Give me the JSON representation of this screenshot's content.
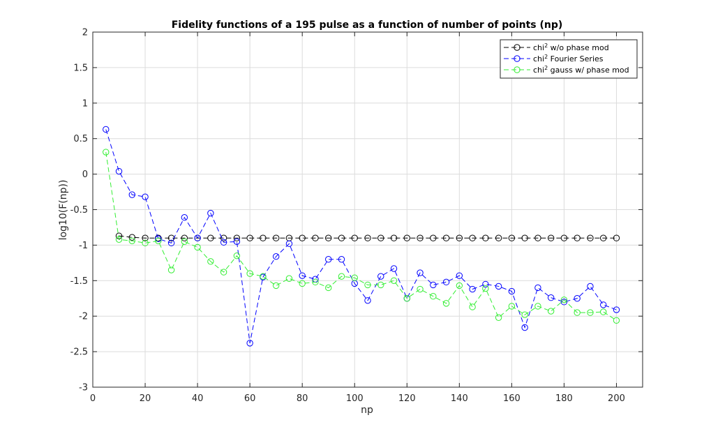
{
  "chart_data": {
    "type": "line",
    "title": "Fidelity functions of a 195 pulse as a function of number of points (np)",
    "xlabel": "np",
    "ylabel": "log10(F(np))",
    "xlim": [
      0,
      210
    ],
    "ylim": [
      -3,
      2
    ],
    "xticks": [
      0,
      20,
      40,
      60,
      80,
      100,
      120,
      140,
      160,
      180,
      200
    ],
    "yticks": [
      -3,
      -2.5,
      -2,
      -1.5,
      -1,
      -0.5,
      0,
      0.5,
      1,
      1.5,
      2
    ],
    "grid": true,
    "legend_position": "top-right",
    "x": [
      5,
      10,
      15,
      20,
      25,
      30,
      35,
      40,
      45,
      50,
      55,
      60,
      65,
      70,
      75,
      80,
      85,
      90,
      95,
      100,
      105,
      110,
      115,
      120,
      125,
      130,
      135,
      140,
      145,
      150,
      155,
      160,
      165,
      170,
      175,
      180,
      185,
      190,
      195,
      200
    ],
    "series": [
      {
        "name": "chi",
        "sup": "2",
        "suffix": " w/o phase mod",
        "color": "#000000",
        "values": [
          null,
          -0.87,
          -0.89,
          -0.9,
          -0.9,
          -0.9,
          -0.9,
          -0.9,
          -0.9,
          -0.9,
          -0.9,
          -0.9,
          -0.9,
          -0.9,
          -0.9,
          -0.9,
          -0.9,
          -0.9,
          -0.9,
          -0.9,
          -0.9,
          -0.9,
          -0.9,
          -0.9,
          -0.9,
          -0.9,
          -0.9,
          -0.9,
          -0.9,
          -0.9,
          -0.9,
          -0.9,
          -0.9,
          -0.9,
          -0.9,
          -0.9,
          -0.9,
          -0.9,
          -0.9,
          -0.9
        ]
      },
      {
        "name": "chi",
        "sup": "2",
        "suffix": " Fourier Series",
        "color": "#0000ff",
        "values": [
          0.63,
          0.04,
          -0.29,
          -0.32,
          -0.91,
          -0.97,
          -0.61,
          -0.9,
          -0.55,
          -0.96,
          -0.95,
          -2.38,
          -1.45,
          -1.16,
          -0.98,
          -1.43,
          -1.48,
          -1.2,
          -1.2,
          -1.54,
          -1.78,
          -1.44,
          -1.33,
          -1.75,
          -1.39,
          -1.56,
          -1.52,
          -1.43,
          -1.62,
          -1.55,
          -1.58,
          -1.65,
          -2.16,
          -1.6,
          -1.74,
          -1.8,
          -1.75,
          -1.58,
          -1.84,
          -1.91
        ]
      },
      {
        "name": "chi",
        "sup": "2",
        "suffix": " gauss w/ phase mod",
        "color": "#33ee33",
        "values": [
          0.31,
          -0.92,
          -0.94,
          -0.97,
          -0.94,
          -1.35,
          -0.95,
          -1.03,
          -1.23,
          -1.38,
          -1.15,
          -1.4,
          -1.44,
          -1.57,
          -1.47,
          -1.54,
          -1.52,
          -1.6,
          -1.44,
          -1.46,
          -1.56,
          -1.56,
          -1.5,
          -1.75,
          -1.62,
          -1.72,
          -1.82,
          -1.57,
          -1.87,
          -1.61,
          -2.02,
          -1.86,
          -1.98,
          -1.86,
          -1.93,
          -1.77,
          -1.95,
          -1.95,
          -1.94,
          -2.06
        ]
      }
    ]
  }
}
